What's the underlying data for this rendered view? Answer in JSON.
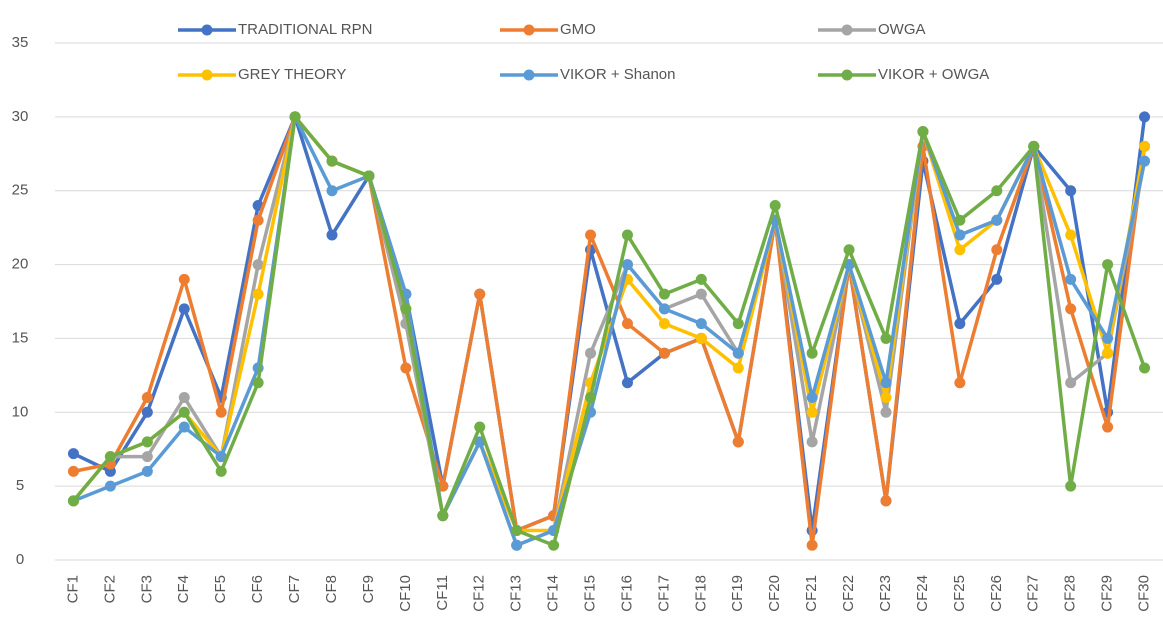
{
  "chart_data": {
    "type": "line",
    "categories": [
      "CF1",
      "CF2",
      "CF3",
      "CF4",
      "CF5",
      "CF6",
      "CF7",
      "CF8",
      "CF9",
      "CF10",
      "CF11",
      "CF12",
      "CF13",
      "CF14",
      "CF15",
      "CF16",
      "CF17",
      "CF18",
      "CF19",
      "CF20",
      "CF21",
      "CF22",
      "CF23",
      "CF24",
      "CF25",
      "CF26",
      "CF27",
      "CF28",
      "CF29",
      "CF30"
    ],
    "series": [
      {
        "name": "TRADITIONAL RPN",
        "color": "#4472c4",
        "values": [
          7.2,
          6,
          10,
          17,
          11,
          24,
          30,
          22,
          26,
          18,
          5,
          18,
          2,
          3,
          21,
          12,
          14,
          15,
          8,
          23,
          2,
          20,
          4,
          27,
          16,
          19,
          28,
          25,
          10,
          30
        ]
      },
      {
        "name": "GMO",
        "color": "#ed7d31",
        "values": [
          6,
          6.5,
          11,
          19,
          10,
          23,
          30,
          27,
          26,
          13,
          5,
          18,
          2,
          3,
          22,
          16,
          14,
          15,
          8,
          23,
          1,
          20,
          4,
          28,
          12,
          21,
          28,
          17,
          9,
          28
        ]
      },
      {
        "name": "OWGA",
        "color": "#a5a5a5",
        "values": [
          4,
          7,
          7,
          11,
          7,
          20,
          30,
          27,
          26,
          16,
          3,
          8,
          1,
          2,
          14,
          20,
          17,
          18,
          14,
          23,
          8,
          20,
          10,
          29,
          22,
          23,
          28,
          12,
          14,
          27
        ]
      },
      {
        "name": "GREY THEORY",
        "color": "#ffc000",
        "values": [
          4,
          7,
          8,
          10,
          7,
          18,
          30,
          27,
          26,
          17,
          3,
          8,
          2,
          2,
          12,
          19,
          16,
          15,
          13,
          23,
          10,
          20,
          11,
          29,
          21,
          23,
          28,
          22,
          14,
          28
        ]
      },
      {
        "name": "VIKOR + Shanon",
        "color": "#5b9bd5",
        "values": [
          4,
          5,
          6,
          9,
          7,
          13,
          30,
          25,
          26,
          18,
          3,
          8,
          1,
          2,
          10,
          20,
          17,
          16,
          14,
          23,
          11,
          20,
          12,
          29,
          22,
          23,
          28,
          19,
          15,
          27
        ]
      },
      {
        "name": "VIKOR + OWGA",
        "color": "#70ad47",
        "values": [
          4,
          7,
          8,
          10,
          6,
          12,
          30,
          27,
          26,
          17,
          3,
          9,
          2,
          1,
          11,
          22,
          18,
          19,
          16,
          24,
          14,
          21,
          15,
          29,
          23,
          25,
          28,
          5,
          20,
          13
        ]
      }
    ],
    "ylim": [
      0,
      35
    ],
    "yticks": [
      0,
      5,
      10,
      15,
      20,
      25,
      30,
      35
    ],
    "grid": true
  }
}
